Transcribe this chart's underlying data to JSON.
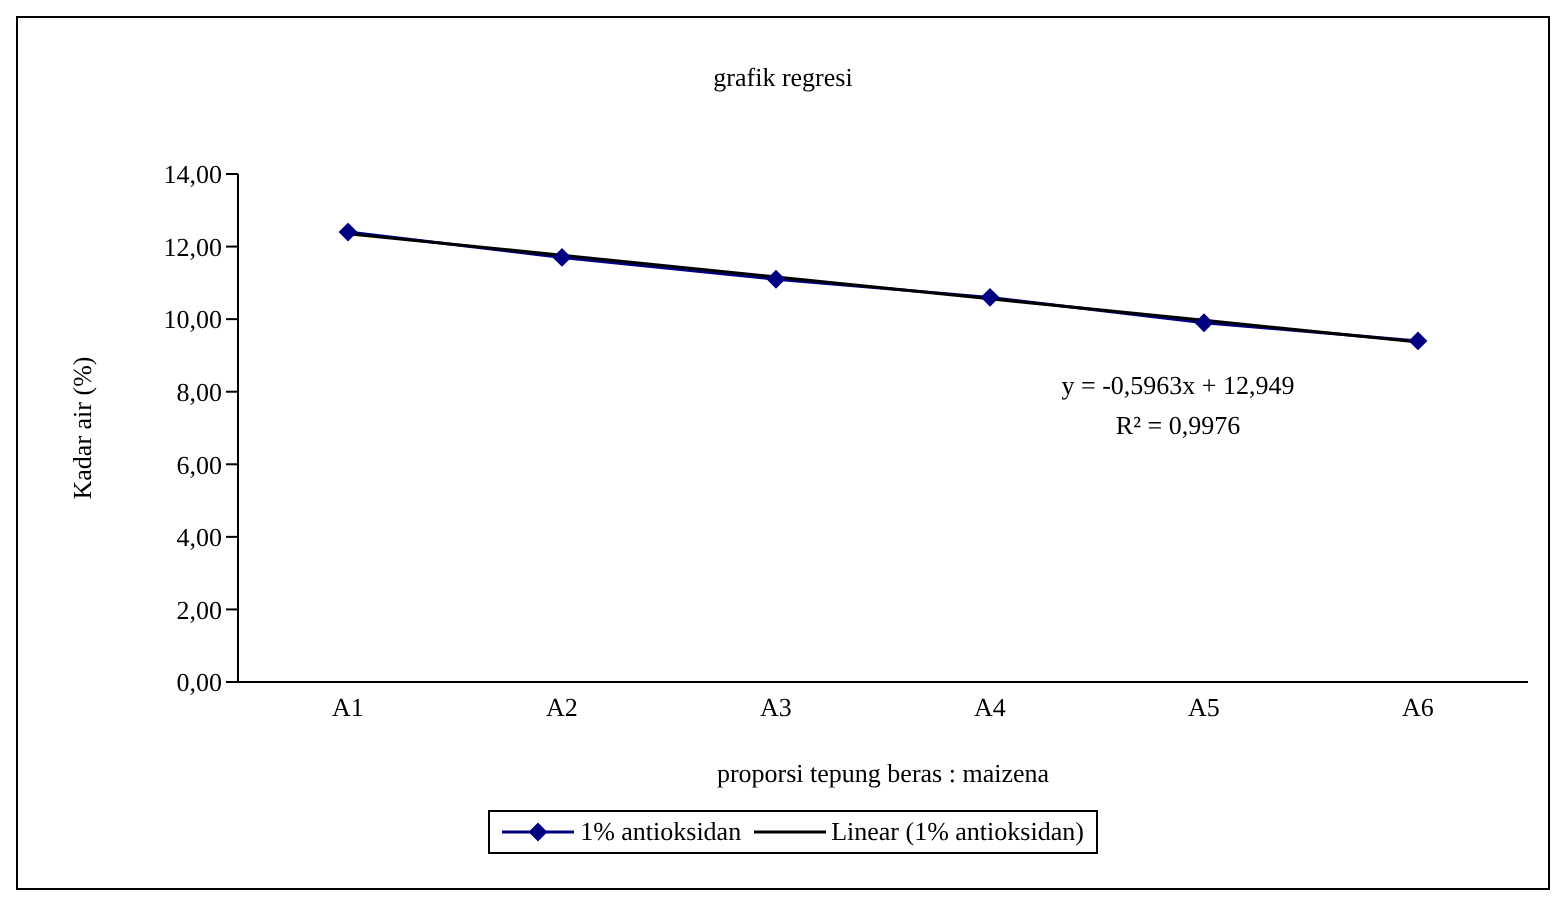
{
  "chart_data": {
    "type": "line",
    "title": "grafik regresi",
    "xlabel": "proporsi tepung beras : maizena",
    "ylabel": "Kadar air (%)",
    "categories": [
      "A1",
      "A2",
      "A3",
      "A4",
      "A5",
      "A6"
    ],
    "series": [
      {
        "name": "1% antioksidan",
        "color": "#000080",
        "marker": "diamond",
        "values": [
          12.4,
          11.7,
          11.1,
          10.6,
          9.9,
          9.4
        ]
      },
      {
        "name": "Linear (1% antioksidan)",
        "color": "#000000",
        "marker": "none",
        "values": [
          12.35,
          11.76,
          11.16,
          10.56,
          9.97,
          9.37
        ]
      }
    ],
    "ylim": [
      0,
      14
    ],
    "yticks": [
      {
        "value": 0,
        "label": "0,00"
      },
      {
        "value": 2,
        "label": "2,00"
      },
      {
        "value": 4,
        "label": "4,00"
      },
      {
        "value": 6,
        "label": "6,00"
      },
      {
        "value": 8,
        "label": "8,00"
      },
      {
        "value": 10,
        "label": "10,00"
      },
      {
        "value": 12,
        "label": "12,00"
      },
      {
        "value": 14,
        "label": "14,00"
      }
    ],
    "annotations": [
      "y = -0,5963x + 12,949",
      "R² = 0,9976"
    ],
    "grid": false,
    "legend": "bottom"
  }
}
